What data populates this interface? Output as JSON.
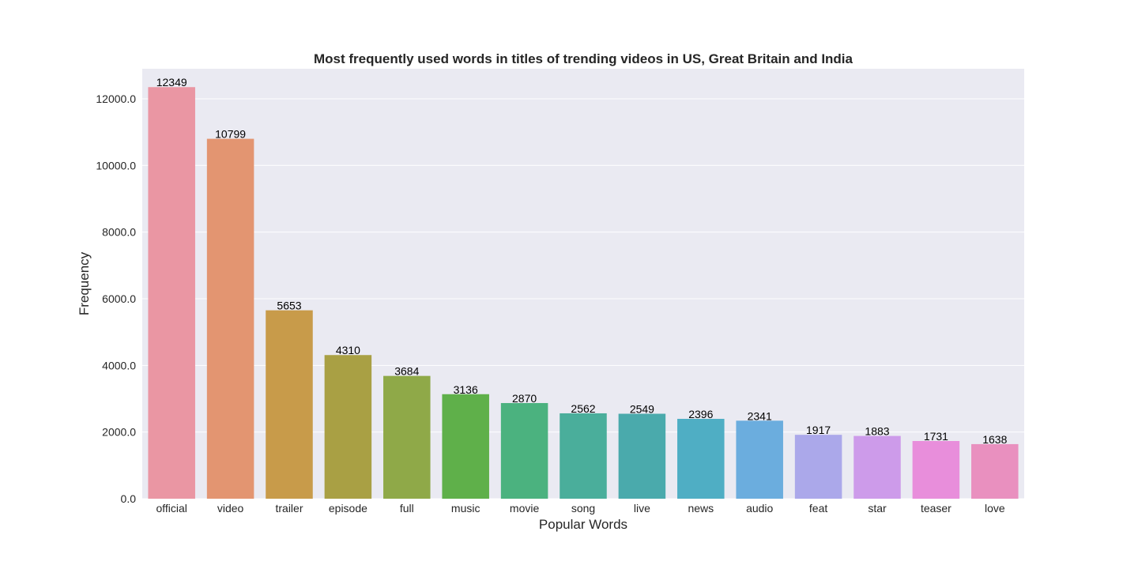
{
  "chart_data": {
    "type": "bar",
    "title": "Most frequently used words in titles of trending videos in US, Great Britain and India",
    "xlabel": "Popular Words",
    "ylabel": "Frequency",
    "categories": [
      "official",
      "video",
      "trailer",
      "episode",
      "full",
      "music",
      "movie",
      "song",
      "live",
      "news",
      "audio",
      "feat",
      "star",
      "teaser",
      "love"
    ],
    "values": [
      12349,
      10799,
      5653,
      4310,
      3684,
      3136,
      2870,
      2562,
      2549,
      2396,
      2341,
      1917,
      1883,
      1731,
      1638
    ],
    "data_labels": [
      "12349",
      "10799",
      "5653",
      "4310",
      "3684",
      "3136",
      "2870",
      "2562",
      "2549",
      "2396",
      "2341",
      "1917",
      "1883",
      "1731",
      "1638"
    ],
    "colors": [
      "#ea96a3",
      "#e39571",
      "#c89b4a",
      "#a9a044",
      "#8fa948",
      "#5fb04a",
      "#4bb27f",
      "#4aae9b",
      "#4aaaac",
      "#4faec4",
      "#6badde",
      "#aba8ea",
      "#cd9bea",
      "#e88edb",
      "#e990bf"
    ],
    "ylim": [
      0,
      12900
    ],
    "yticks": [
      0,
      2000,
      4000,
      6000,
      8000,
      10000,
      12000
    ],
    "ytick_labels": [
      "0.0",
      "2000.0",
      "4000.0",
      "6000.0",
      "8000.0",
      "10000.0",
      "12000.0"
    ],
    "grid": true,
    "background_color": "#eaeaf2",
    "grid_color": "#ffffff"
  }
}
